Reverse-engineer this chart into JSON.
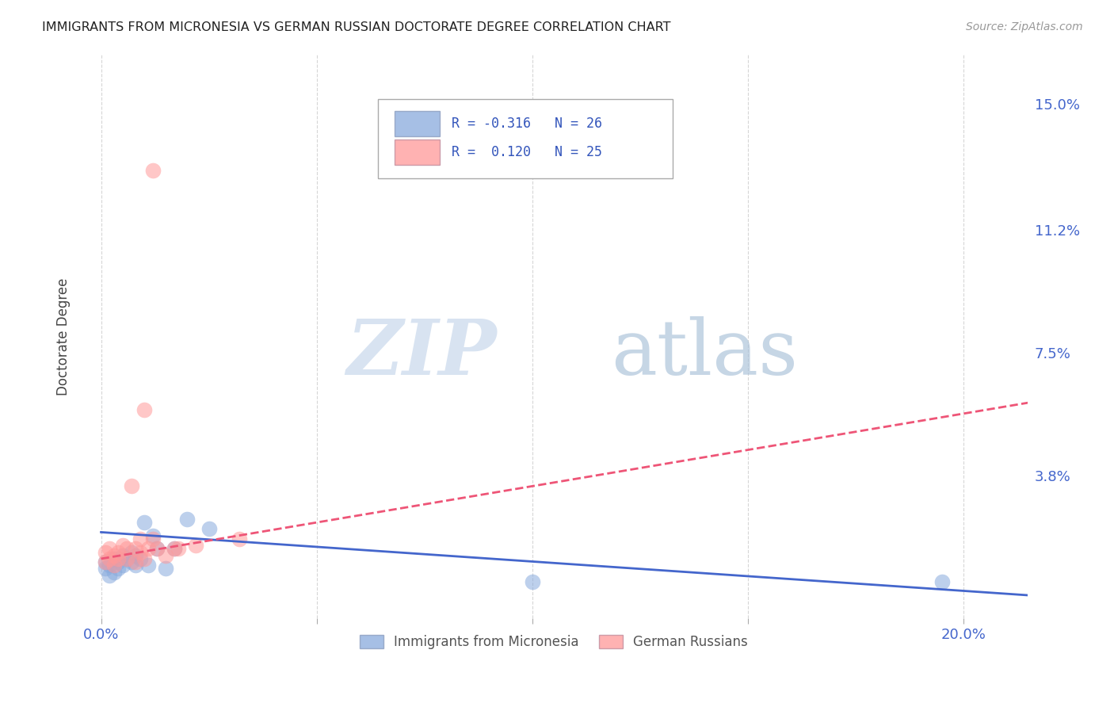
{
  "title": "IMMIGRANTS FROM MICRONESIA VS GERMAN RUSSIAN DOCTORATE DEGREE CORRELATION CHART",
  "source": "Source: ZipAtlas.com",
  "ylabel_label": "Doctorate Degree",
  "xlim": [
    -0.005,
    0.215
  ],
  "ylim": [
    -0.005,
    0.165
  ],
  "blue_R": "-0.316",
  "blue_N": "26",
  "pink_R": "0.120",
  "pink_N": "25",
  "blue_color": "#88AADD",
  "pink_color": "#FF9999",
  "blue_line_color": "#4466CC",
  "pink_line_color": "#EE5577",
  "pink_line_style": "-",
  "blue_line_style": "-",
  "legend_label_blue": "Immigrants from Micronesia",
  "legend_label_pink": "German Russians",
  "blue_scatter_x": [
    0.001,
    0.001,
    0.002,
    0.002,
    0.003,
    0.003,
    0.004,
    0.004,
    0.005,
    0.005,
    0.006,
    0.007,
    0.007,
    0.008,
    0.008,
    0.009,
    0.01,
    0.011,
    0.012,
    0.013,
    0.015,
    0.017,
    0.02,
    0.025,
    0.1,
    0.195
  ],
  "blue_scatter_y": [
    0.012,
    0.01,
    0.011,
    0.008,
    0.013,
    0.009,
    0.012,
    0.01,
    0.014,
    0.011,
    0.013,
    0.015,
    0.012,
    0.014,
    0.011,
    0.013,
    0.024,
    0.011,
    0.02,
    0.016,
    0.01,
    0.016,
    0.025,
    0.022,
    0.006,
    0.006
  ],
  "pink_scatter_x": [
    0.001,
    0.001,
    0.002,
    0.002,
    0.003,
    0.003,
    0.004,
    0.004,
    0.005,
    0.006,
    0.006,
    0.007,
    0.008,
    0.008,
    0.009,
    0.009,
    0.01,
    0.011,
    0.012,
    0.013,
    0.015,
    0.017,
    0.018,
    0.022,
    0.032
  ],
  "pink_scatter_y": [
    0.015,
    0.012,
    0.016,
    0.013,
    0.014,
    0.011,
    0.015,
    0.013,
    0.017,
    0.016,
    0.013,
    0.035,
    0.012,
    0.016,
    0.019,
    0.015,
    0.013,
    0.016,
    0.019,
    0.016,
    0.014,
    0.016,
    0.016,
    0.017,
    0.019
  ],
  "pink_outlier_x": [
    0.012
  ],
  "pink_outlier_y": [
    0.13
  ],
  "pink_highval_x": [
    0.01
  ],
  "pink_highval_y": [
    0.058
  ],
  "blue_line_x0": 0.0,
  "blue_line_y0": 0.021,
  "blue_line_x1": 0.215,
  "blue_line_y1": 0.002,
  "pink_line_x0": 0.0,
  "pink_line_y0": 0.013,
  "pink_line_x1": 0.215,
  "pink_line_y1": 0.06,
  "dashed_line_x0": 0.0,
  "dashed_line_y0": 0.013,
  "dashed_line_x1": 0.215,
  "dashed_line_y1": 0.06
}
